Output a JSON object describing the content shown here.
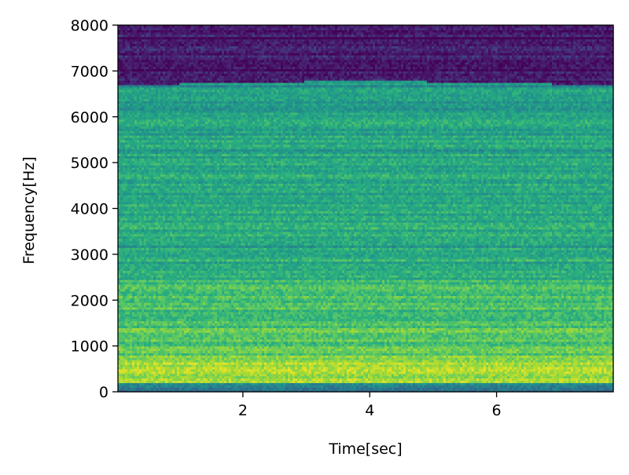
{
  "chart_data": {
    "type": "heatmap",
    "title": "",
    "xlabel": "Time[sec]",
    "ylabel": "Frequency[Hz]",
    "xlim": [
      0.03,
      7.84
    ],
    "ylim": [
      0,
      8000
    ],
    "xticks": [
      2,
      4,
      6
    ],
    "yticks": [
      0,
      1000,
      2000,
      3000,
      4000,
      5000,
      6000,
      7000,
      8000
    ],
    "colormap": "viridis",
    "grid": false,
    "legend": "none",
    "intensity_bands": [
      {
        "freq_range_hz": [
          0,
          200
        ],
        "level": 0.42
      },
      {
        "freq_range_hz": [
          200,
          800
        ],
        "level": 0.86
      },
      {
        "freq_range_hz": [
          800,
          1500
        ],
        "level": 0.74
      },
      {
        "freq_range_hz": [
          1500,
          2500
        ],
        "level": 0.7
      },
      {
        "freq_range_hz": [
          2500,
          4000
        ],
        "level": 0.63
      },
      {
        "freq_range_hz": [
          4000,
          6000
        ],
        "level": 0.6
      },
      {
        "freq_range_hz": [
          6000,
          6750
        ],
        "level": 0.56
      },
      {
        "freq_range_hz": [
          6750,
          8000
        ],
        "level": 0.1
      }
    ],
    "upper_band_edge_hz": {
      "start": 6700,
      "middle": 6800,
      "end": 6700
    }
  },
  "colors": {
    "viridis_low": "#3b1f6b",
    "viridis_high": "#d8e31d",
    "axes": "#000000"
  }
}
